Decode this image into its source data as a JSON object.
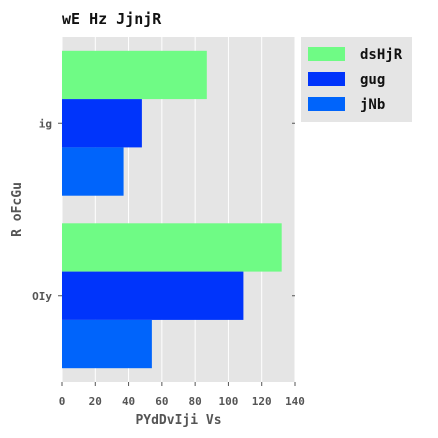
{
  "chart_data": {
    "type": "bar",
    "orientation": "horizontal",
    "title": "wE Hz JjnjR",
    "xlabel": "PYdDvIji Vs",
    "ylabel": "R oFcGu",
    "categories": [
      "ig",
      "OIy"
    ],
    "series": [
      {
        "name": "dsHjR",
        "color": "#6ffb85",
        "values": [
          87,
          132
        ]
      },
      {
        "name": "gug",
        "color": "#0034fb",
        "values": [
          48,
          109
        ]
      },
      {
        "name": "jNb",
        "color": "#0064fb",
        "values": [
          37,
          54
        ]
      }
    ],
    "xlim": [
      0,
      140
    ],
    "xticks": [
      "0",
      "20",
      "40",
      "60",
      "80",
      "100",
      "120",
      "140"
    ],
    "grid": true,
    "legend_position": "top-right",
    "background_color": "#e5e5e5"
  }
}
